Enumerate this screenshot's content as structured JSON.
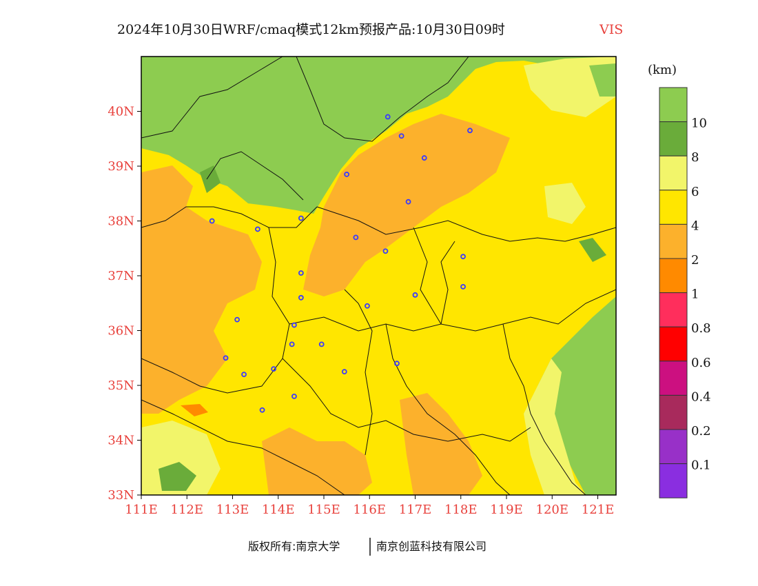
{
  "title": {
    "main": "2024年10月30日WRF/cmaq模式12km预报产品:10月30日09时",
    "variable": "VIS",
    "variable_color": "#e8413c"
  },
  "axes": {
    "tick_color": "#e8413c",
    "lat_labels": [
      "33N",
      "34N",
      "35N",
      "36N",
      "37N",
      "38N",
      "39N",
      "40N"
    ],
    "lon_labels": [
      "111E",
      "112E",
      "113E",
      "114E",
      "115E",
      "116E",
      "117E",
      "118E",
      "119E",
      "120E",
      "121E"
    ]
  },
  "legend": {
    "unit": "(km)",
    "levels": [
      {
        "label": "",
        "color": "#8dcc50"
      },
      {
        "label": "10",
        "color": "#6aac3a"
      },
      {
        "label": "8",
        "color": "#f2f56a"
      },
      {
        "label": "6",
        "color": "#ffe600"
      },
      {
        "label": "4",
        "color": "#fcb12c"
      },
      {
        "label": "2",
        "color": "#ff8a00"
      },
      {
        "label": "1",
        "color": "#ff2e5c"
      },
      {
        "label": "0.8",
        "color": "#ff0000"
      },
      {
        "label": "0.6",
        "color": "#cc1080"
      },
      {
        "label": "0.4",
        "color": "#a82a5c"
      },
      {
        "label": "0.2",
        "color": "#9830c8"
      },
      {
        "label": "0.1",
        "color": "#8a2ee0"
      }
    ]
  },
  "footer": {
    "left": "版权所有:南京大学",
    "right": "南京创蓝科技有限公司"
  },
  "map_data": {
    "lon_range": [
      111,
      121.4
    ],
    "lat_range": [
      33,
      41
    ],
    "stations": [
      {
        "lon": 116.4,
        "lat": 39.9
      },
      {
        "lon": 116.7,
        "lat": 39.55
      },
      {
        "lon": 118.2,
        "lat": 39.65
      },
      {
        "lon": 117.2,
        "lat": 39.15
      },
      {
        "lon": 115.5,
        "lat": 38.85
      },
      {
        "lon": 116.85,
        "lat": 38.35
      },
      {
        "lon": 112.55,
        "lat": 38.0
      },
      {
        "lon": 113.55,
        "lat": 37.85
      },
      {
        "lon": 114.5,
        "lat": 38.05
      },
      {
        "lon": 115.7,
        "lat": 37.7
      },
      {
        "lon": 116.35,
        "lat": 37.45
      },
      {
        "lon": 118.05,
        "lat": 37.35
      },
      {
        "lon": 114.5,
        "lat": 37.05
      },
      {
        "lon": 118.05,
        "lat": 36.8
      },
      {
        "lon": 117.0,
        "lat": 36.65
      },
      {
        "lon": 114.5,
        "lat": 36.6
      },
      {
        "lon": 115.95,
        "lat": 36.45
      },
      {
        "lon": 113.1,
        "lat": 36.2
      },
      {
        "lon": 114.35,
        "lat": 36.1
      },
      {
        "lon": 114.3,
        "lat": 35.75
      },
      {
        "lon": 114.95,
        "lat": 35.75
      },
      {
        "lon": 112.85,
        "lat": 35.5
      },
      {
        "lon": 113.9,
        "lat": 35.3
      },
      {
        "lon": 113.25,
        "lat": 35.2
      },
      {
        "lon": 115.45,
        "lat": 35.25
      },
      {
        "lon": 116.6,
        "lat": 35.4
      },
      {
        "lon": 114.35,
        "lat": 34.8
      },
      {
        "lon": 113.65,
        "lat": 34.55
      }
    ]
  }
}
